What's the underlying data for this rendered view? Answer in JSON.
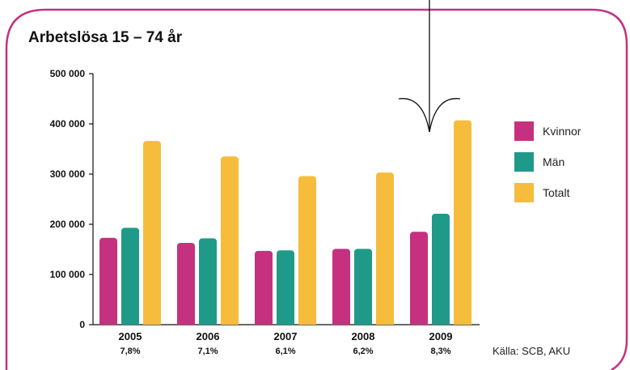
{
  "colors": {
    "frame": "#c5317f",
    "Kvinnor": "#c5317f",
    "Män": "#1f9a88",
    "Totalt": "#f6bc3b"
  },
  "source": "Källa: SCB, AKU",
  "chart_data": {
    "type": "bar",
    "title": "Arbetslösa 15 – 74 år",
    "xlabel": "",
    "ylabel": "",
    "categories": [
      "2005",
      "2006",
      "2007",
      "2008",
      "2009"
    ],
    "category_sublabels": [
      "7,8%",
      "7,1%",
      "6,1%",
      "6,2%",
      "8,3%"
    ],
    "series": [
      {
        "name": "Kvinnor",
        "values": [
          173000,
          163000,
          147000,
          151000,
          185000
        ]
      },
      {
        "name": "Män",
        "values": [
          193000,
          172000,
          148000,
          151000,
          221000
        ]
      },
      {
        "name": "Totalt",
        "values": [
          366000,
          335000,
          296000,
          303000,
          407000
        ]
      }
    ],
    "ylim": [
      0,
      500000
    ],
    "yticks": [
      0,
      100000,
      200000,
      300000,
      400000,
      500000
    ],
    "ytick_labels": [
      "0",
      "100 000",
      "200 000",
      "300 000",
      "400 000",
      "500 000"
    ],
    "grid": false,
    "legend_position": "right"
  }
}
